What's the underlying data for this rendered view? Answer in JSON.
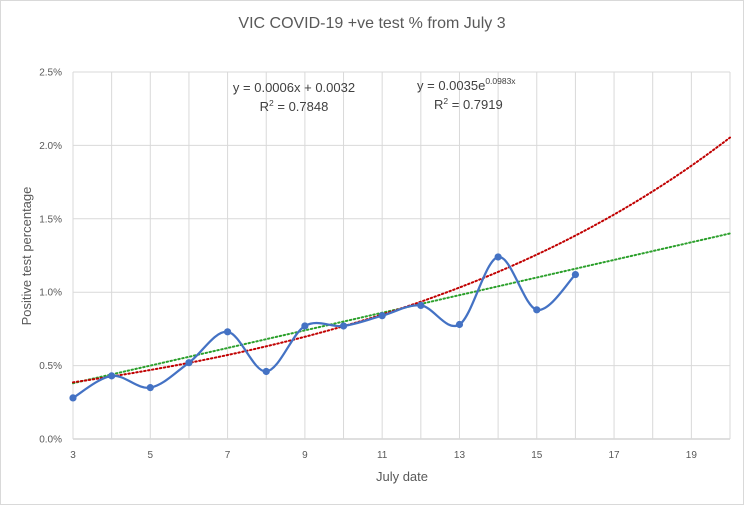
{
  "chart_data": {
    "type": "scatter",
    "title": "VIC COVID-19 +ve test % from July 3",
    "xlabel": "July date",
    "ylabel": "Positive test percentage",
    "xlim": [
      3,
      20
    ],
    "ylim": [
      0,
      2.5
    ],
    "x_ticks": [
      "3",
      "5",
      "7",
      "9",
      "11",
      "13",
      "15",
      "17",
      "19"
    ],
    "y_ticks": [
      "0.0%",
      "0.5%",
      "1.0%",
      "1.5%",
      "2.0%",
      "2.5%"
    ],
    "grid": true,
    "smoothed_line": true,
    "series": [
      {
        "color": "#4472c4",
        "points": [
          {
            "x": 3,
            "y": 0.28
          },
          {
            "x": 4,
            "y": 0.43
          },
          {
            "x": 5,
            "y": 0.35
          },
          {
            "x": 6,
            "y": 0.52
          },
          {
            "x": 7,
            "y": 0.73
          },
          {
            "x": 8,
            "y": 0.46
          },
          {
            "x": 9,
            "y": 0.77
          },
          {
            "x": 10,
            "y": 0.77
          },
          {
            "x": 11,
            "y": 0.84
          },
          {
            "x": 12,
            "y": 0.91
          },
          {
            "x": 13,
            "y": 0.78
          },
          {
            "x": 14,
            "y": 1.24
          },
          {
            "x": 15,
            "y": 0.88
          },
          {
            "x": 16,
            "y": 1.12
          }
        ]
      }
    ],
    "trendlines": [
      {
        "kind": "linear",
        "color": "#2ca02c",
        "equation": "y = 0.0006x + 0.0032",
        "r_squared_label": "R",
        "r_squared_sup": "2",
        "r_squared_value": " = 0.7848",
        "slope_pct": 0.06,
        "intercept_pct": 0.32,
        "x_day_start": 3
      },
      {
        "kind": "exponential",
        "color": "#c00000",
        "equation_base": "y = 0.0035e",
        "equation_exp": "0.0983x",
        "r_squared_label": "R",
        "r_squared_sup": "2",
        "r_squared_value": " = 0.7919",
        "coef_pct": 0.35,
        "rate": 0.0983,
        "x_day_start": 3
      }
    ]
  }
}
